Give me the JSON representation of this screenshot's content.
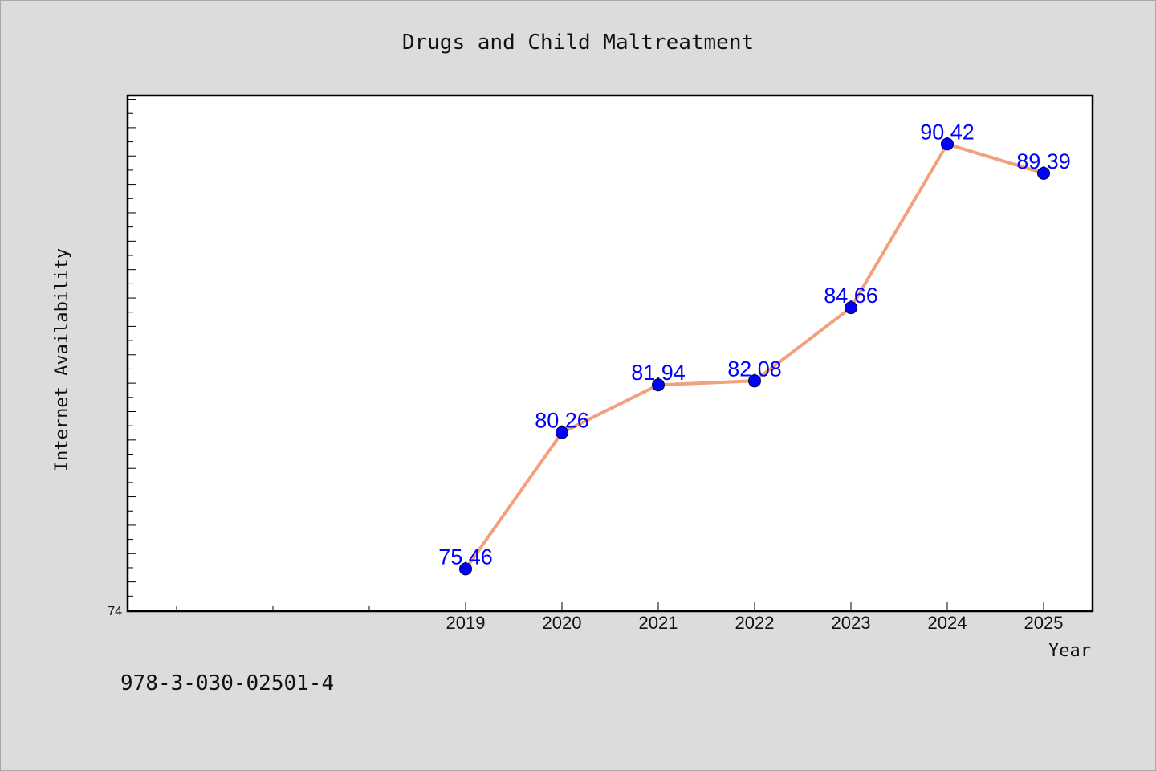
{
  "footer_text": "978-3-030-02501-4",
  "chart_data": {
    "type": "line",
    "title": "Drugs and Child Maltreatment",
    "xlabel": "Year",
    "ylabel": "Internet Availability",
    "categories": [
      "2019",
      "2020",
      "2021",
      "2022",
      "2023",
      "2024",
      "2025"
    ],
    "series": [
      {
        "values": [
          75.46,
          80.26,
          81.94,
          82.08,
          84.66,
          90.42,
          89.39
        ],
        "data_labels": [
          "75.46",
          "80.26",
          "81.94",
          "82.08",
          "84.66",
          "90.42",
          "89.39"
        ]
      }
    ],
    "xlim": [
      2015.5,
      2025.5
    ],
    "ylim": [
      74,
      92.1
    ],
    "y_tick_labels": [
      "74"
    ],
    "grid": false,
    "legend": "none",
    "colors": {
      "line": "#f4a07c",
      "marker": "#0000ff",
      "label": "#0000ff",
      "background": "#dcdcdc",
      "plot_background": "#ffffff"
    }
  }
}
